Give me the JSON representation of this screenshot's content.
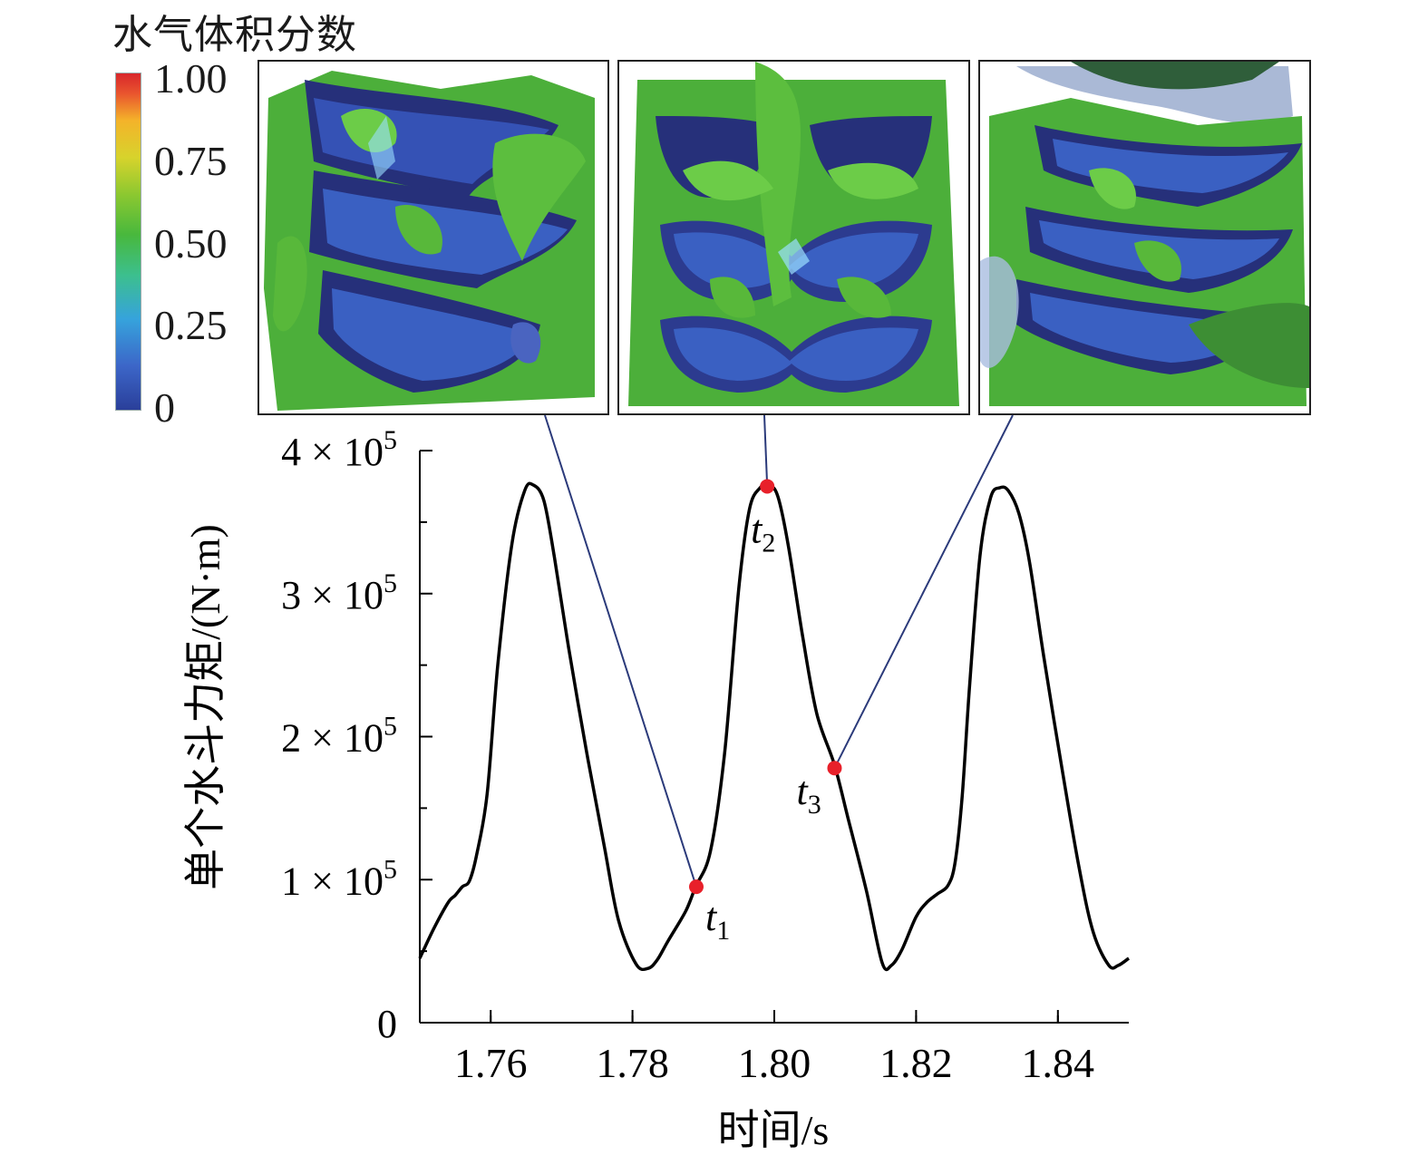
{
  "colorbar": {
    "title": "水气体积分数",
    "ticks": [
      "1.00",
      "0.75",
      "0.50",
      "0.25",
      "0"
    ]
  },
  "chart_data": {
    "type": "line",
    "title": "",
    "xlabel": "时间/s",
    "ylabel": "单个水斗力矩/(N·m)",
    "xlim": [
      1.75,
      1.85
    ],
    "ylim": [
      0,
      400000
    ],
    "x_ticks": [
      "1.76",
      "1.78",
      "1.80",
      "1.82",
      "1.84"
    ],
    "y_ticks": [
      {
        "value": 0,
        "coef": "0"
      },
      {
        "value": 100000,
        "coef": "1 × 10",
        "exp": "5"
      },
      {
        "value": 200000,
        "coef": "2 × 10",
        "exp": "5"
      },
      {
        "value": 300000,
        "coef": "3 × 10",
        "exp": "5"
      },
      {
        "value": 400000,
        "coef": "4 × 10",
        "exp": "5"
      }
    ],
    "series": [
      {
        "x": [
          1.75,
          1.752,
          1.754,
          1.755,
          1.756,
          1.757,
          1.758,
          1.7595,
          1.761,
          1.763,
          1.7648,
          1.766,
          1.7675,
          1.769,
          1.771,
          1.7735,
          1.776,
          1.778,
          1.7805,
          1.7822,
          1.7835,
          1.785,
          1.7875,
          1.7889,
          1.791,
          1.793,
          1.795,
          1.7965,
          1.798,
          1.7992,
          1.8005,
          1.802,
          1.804,
          1.806,
          1.8085,
          1.8105,
          1.813,
          1.8152,
          1.8165,
          1.818,
          1.82,
          1.8215,
          1.823,
          1.8245,
          1.8255,
          1.8265,
          1.8275,
          1.829,
          1.8305,
          1.8318,
          1.833,
          1.8345,
          1.836,
          1.838,
          1.8405,
          1.843,
          1.845,
          1.8472,
          1.8485,
          1.85
        ],
        "y": [
          45000,
          66000,
          84000,
          89000,
          95000,
          99000,
          117000,
          160000,
          250000,
          335000,
          372000,
          376000,
          365000,
          325000,
          262000,
          190000,
          124000,
          72000,
          41000,
          38000,
          44000,
          57000,
          78000,
          95000,
          120000,
          189000,
          304000,
          359000,
          374000,
          376000,
          368000,
          333000,
          270000,
          216000,
          180000,
          141000,
          92000,
          42000,
          40000,
          51000,
          74000,
          84000,
          90000,
          96000,
          112000,
          158000,
          232000,
          326000,
          367000,
          374000,
          372000,
          356000,
          322000,
          256000,
          180000,
          108000,
          63000,
          40000,
          40000,
          45000
        ]
      }
    ],
    "markers": [
      {
        "label": "t",
        "sub": "1",
        "x": 1.789,
        "y": 95000
      },
      {
        "label": "t",
        "sub": "2",
        "x": 1.799,
        "y": 375000
      },
      {
        "label": "t",
        "sub": "3",
        "x": 1.8085,
        "y": 178000
      }
    ],
    "marker_color": "#e8202a",
    "line_color": "#000000",
    "leader_color": "#2b3a7a",
    "grid": false,
    "insets": [
      {
        "name": "inset-t1",
        "view": "side",
        "links_to": "t1"
      },
      {
        "name": "inset-t2",
        "view": "front",
        "links_to": "t2"
      },
      {
        "name": "inset-t3",
        "view": "side-rotated",
        "links_to": "t3"
      }
    ]
  }
}
